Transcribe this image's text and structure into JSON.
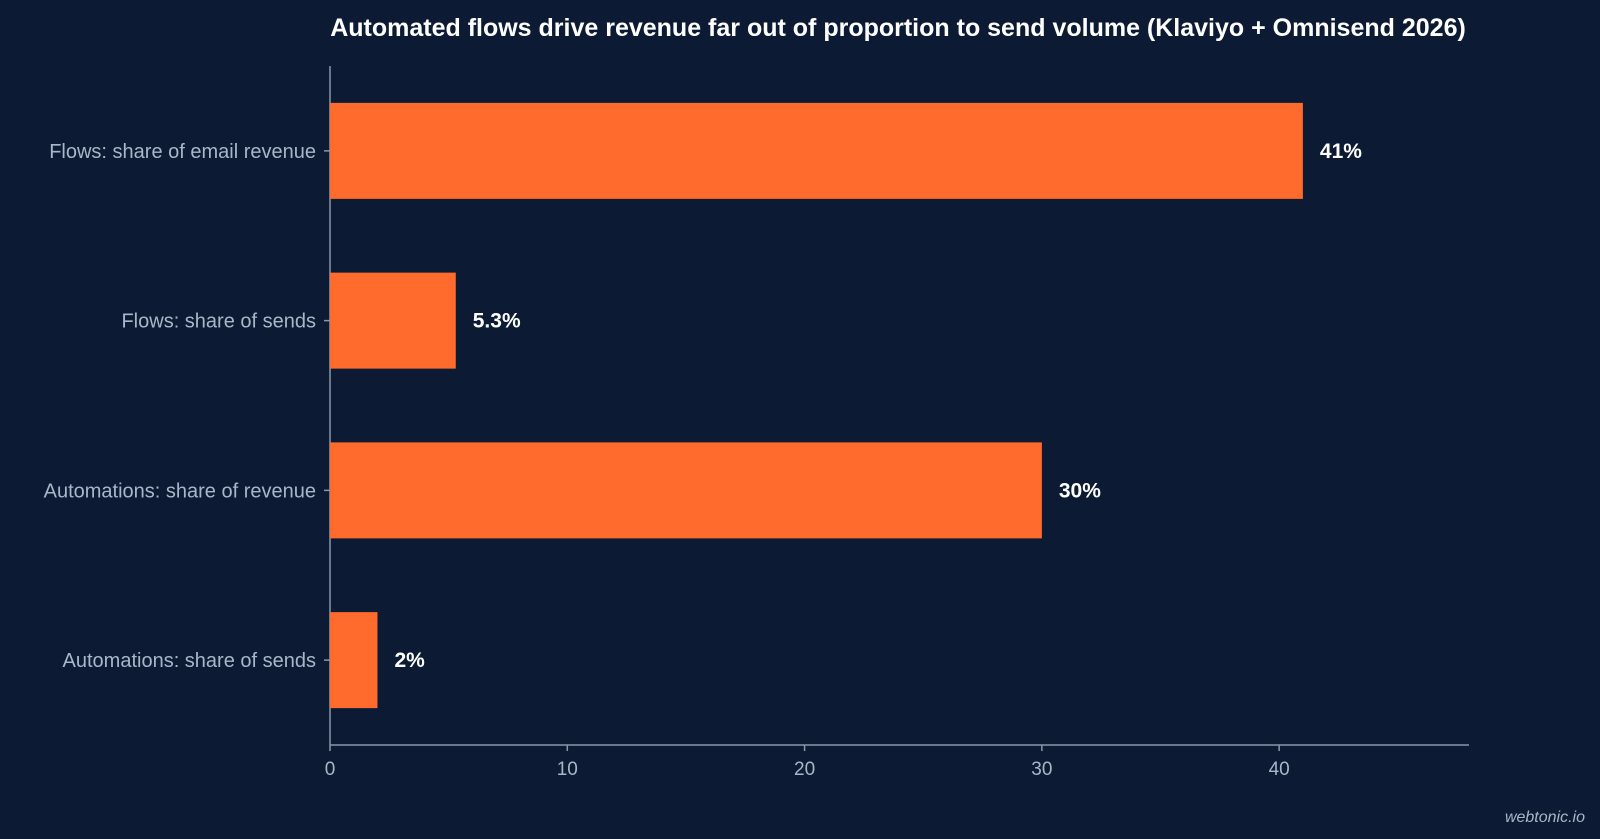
{
  "chart_data": {
    "type": "bar",
    "orientation": "horizontal",
    "title": "Automated flows drive revenue far out of proportion to send volume (Klaviyo + Omnisend 2026)",
    "categories": [
      "Flows: share of email revenue",
      "Flows: share of sends",
      "Automations: share of revenue",
      "Automations: share of sends"
    ],
    "values": [
      41,
      5.3,
      30,
      2
    ],
    "data_labels": [
      "41%",
      "5.3%",
      "30%",
      "2%"
    ],
    "xlabel": "",
    "ylabel": "",
    "xlim": [
      0,
      48
    ],
    "xticks": [
      0,
      10,
      20,
      30,
      40
    ],
    "xtick_labels": [
      "0",
      "10",
      "20",
      "30",
      "40"
    ],
    "grid": false,
    "legend": "none",
    "bar_color": "#ff6b2c",
    "background_color": "#0c1b33",
    "axis_color": "#8a97aa"
  },
  "footer": {
    "watermark": "webtonic.io"
  }
}
